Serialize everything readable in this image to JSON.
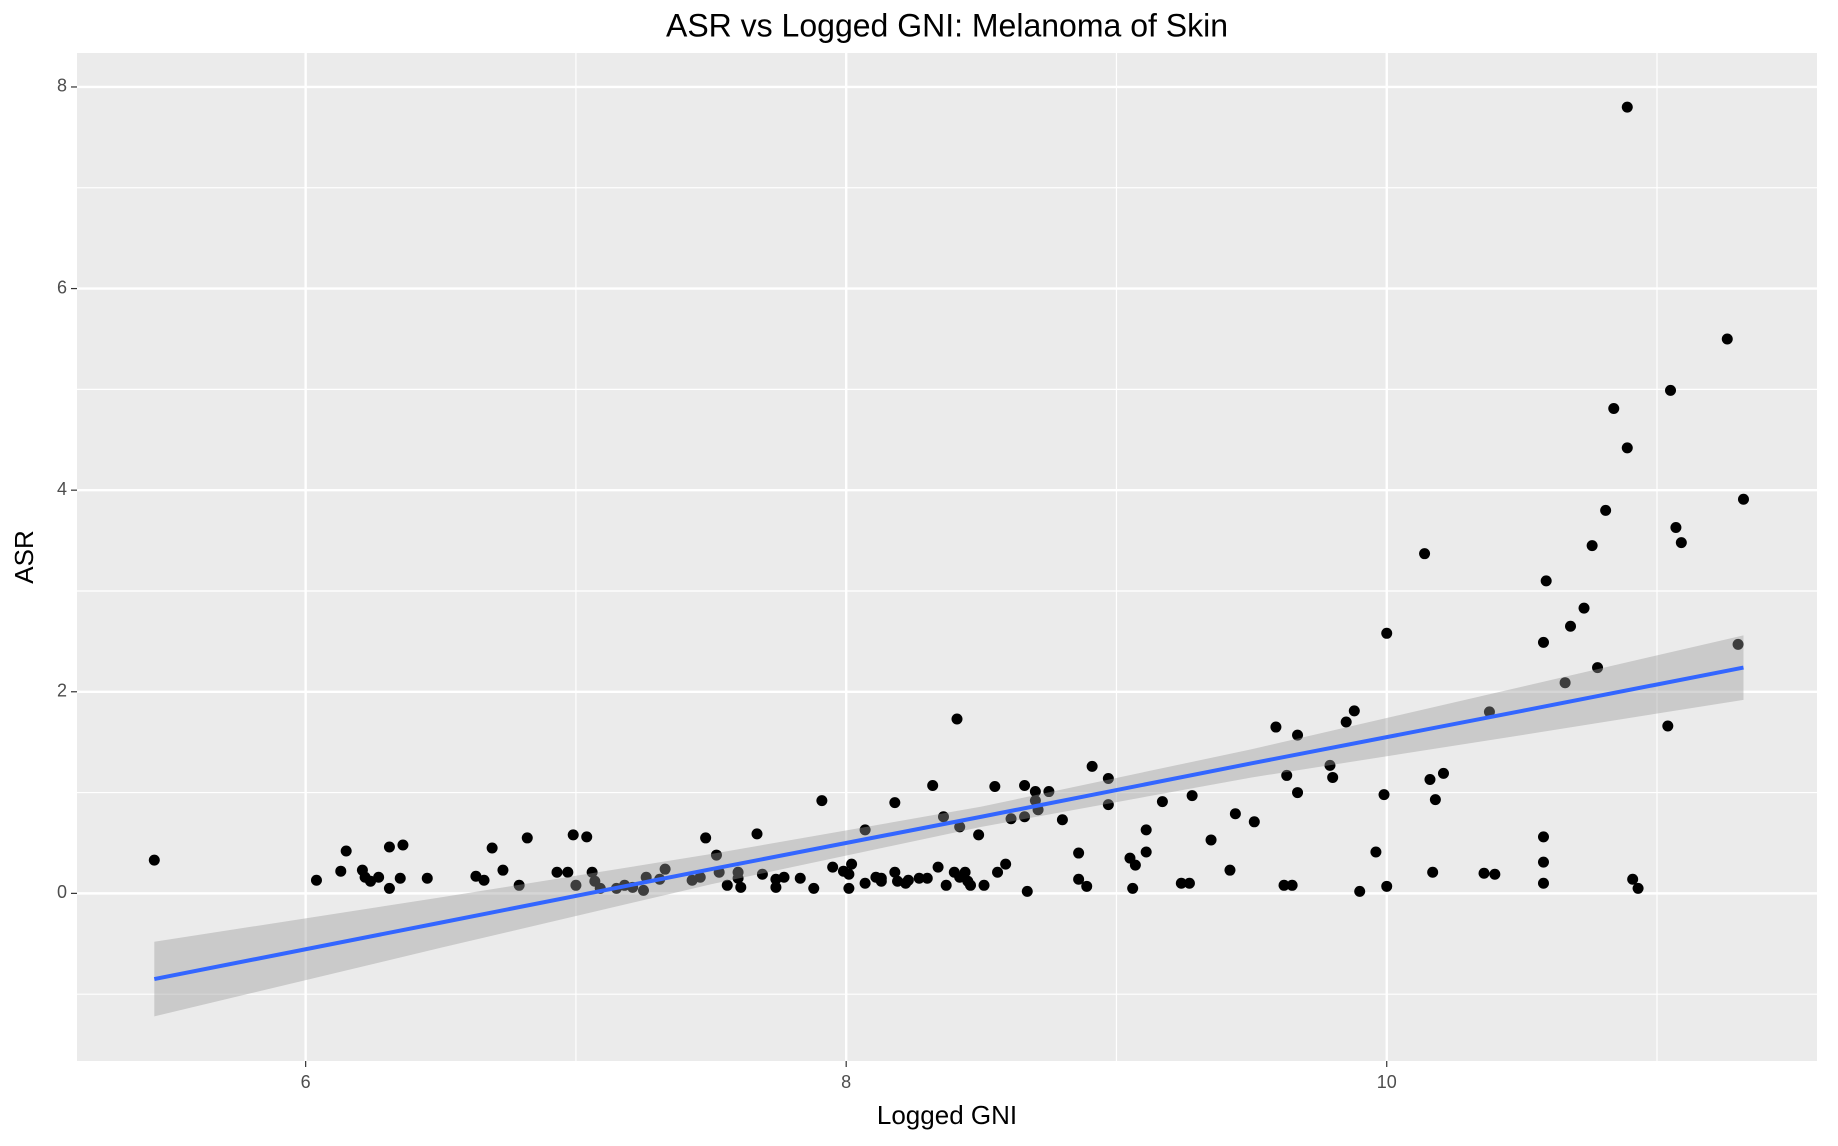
{
  "chart_data": {
    "type": "scatter",
    "title": "ASR vs Logged GNI: Melanoma of Skin",
    "x_label": "Logged GNI",
    "y_label": "ASR",
    "xlim": [
      5.154,
      11.592
    ],
    "ylim": [
      -1.663,
      8.337
    ],
    "xticks": [
      6,
      8,
      10
    ],
    "yticks": [
      0,
      2,
      4,
      6,
      8
    ],
    "x_minor_grid": [
      7,
      9,
      11
    ],
    "y_minor_grid": [
      -1,
      1,
      3,
      5,
      7
    ],
    "grid": true,
    "panel_color": "#ebebeb",
    "point_color": "#000000",
    "x": [
      5.44,
      6.04,
      6.13,
      6.15,
      6.21,
      6.22,
      6.24,
      6.27,
      6.31,
      6.31,
      6.35,
      6.36,
      6.45,
      6.63,
      6.66,
      6.69,
      6.73,
      6.79,
      6.82,
      6.93,
      6.97,
      6.99,
      7.0,
      7.04,
      7.06,
      7.07,
      7.09,
      7.15,
      7.18,
      7.21,
      7.25,
      7.26,
      7.31,
      7.33,
      7.43,
      7.46,
      7.48,
      7.52,
      7.53,
      7.56,
      7.6,
      7.6,
      7.61,
      7.67,
      7.69,
      7.74,
      7.74,
      7.77,
      7.83,
      7.88,
      7.91,
      7.95,
      7.99,
      8.01,
      8.01,
      8.02,
      8.07,
      8.07,
      8.11,
      8.13,
      8.13,
      8.18,
      8.18,
      8.19,
      8.22,
      8.23,
      8.27,
      8.3,
      8.32,
      8.34,
      8.36,
      8.37,
      8.4,
      8.41,
      8.42,
      8.42,
      8.44,
      8.45,
      8.46,
      8.49,
      8.51,
      8.55,
      8.56,
      8.59,
      8.61,
      8.66,
      8.66,
      8.67,
      8.7,
      8.7,
      8.71,
      8.75,
      8.8,
      8.86,
      8.86,
      8.89,
      8.91,
      8.97,
      8.97,
      9.05,
      9.06,
      9.07,
      9.11,
      9.11,
      9.17,
      9.24,
      9.27,
      9.28,
      9.35,
      9.42,
      9.44,
      9.51,
      9.59,
      9.62,
      9.63,
      9.65,
      9.67,
      9.67,
      9.79,
      9.8,
      9.85,
      9.88,
      9.9,
      9.96,
      9.99,
      10.0,
      10.0,
      10.14,
      10.16,
      10.17,
      10.18,
      10.21,
      10.36,
      10.38,
      10.4,
      10.58,
      10.58,
      10.58,
      10.58,
      10.59,
      10.66,
      10.68,
      10.73,
      10.76,
      10.78,
      10.81,
      10.84,
      10.89,
      10.89,
      10.91,
      10.93,
      11.04,
      11.05,
      11.07,
      11.09,
      11.26,
      11.3,
      11.32
    ],
    "values": [
      0.33,
      0.13,
      0.22,
      0.42,
      0.23,
      0.16,
      0.12,
      0.16,
      0.46,
      0.05,
      0.15,
      0.48,
      0.15,
      0.17,
      0.13,
      0.45,
      0.23,
      0.08,
      0.55,
      0.21,
      0.21,
      0.58,
      0.08,
      0.56,
      0.21,
      0.12,
      0.05,
      0.05,
      0.08,
      0.06,
      0.03,
      0.16,
      0.14,
      0.24,
      0.13,
      0.16,
      0.55,
      0.38,
      0.21,
      0.08,
      0.21,
      0.15,
      0.06,
      0.59,
      0.19,
      0.14,
      0.06,
      0.16,
      0.15,
      0.05,
      0.92,
      0.26,
      0.22,
      0.19,
      0.05,
      0.29,
      0.63,
      0.1,
      0.16,
      0.12,
      0.15,
      0.9,
      0.21,
      0.12,
      0.1,
      0.13,
      0.15,
      0.15,
      1.07,
      0.26,
      0.76,
      0.08,
      0.21,
      1.73,
      0.16,
      0.66,
      0.21,
      0.12,
      0.08,
      0.58,
      0.08,
      1.06,
      0.21,
      0.29,
      0.74,
      1.07,
      0.76,
      0.02,
      1.01,
      0.92,
      0.83,
      1.01,
      0.73,
      0.4,
      0.14,
      0.07,
      1.26,
      0.88,
      1.14,
      0.35,
      0.05,
      0.28,
      0.63,
      0.41,
      0.91,
      0.1,
      0.1,
      0.97,
      0.53,
      0.23,
      0.79,
      0.71,
      1.65,
      0.08,
      1.17,
      0.08,
      1.0,
      1.57,
      1.27,
      1.15,
      1.7,
      1.81,
      0.02,
      0.41,
      0.98,
      0.07,
      2.58,
      3.37,
      1.13,
      0.21,
      0.93,
      1.19,
      0.2,
      1.8,
      0.19,
      2.49,
      0.31,
      0.56,
      0.1,
      3.1,
      2.09,
      2.65,
      2.83,
      3.45,
      2.24,
      3.8,
      4.81,
      7.8,
      4.42,
      0.14,
      0.05,
      1.66,
      4.99,
      3.63,
      3.48,
      5.5,
      2.47,
      3.91
    ],
    "trend": {
      "color": "#3366ff",
      "band_color": "#999999",
      "x": [
        5.44,
        6.5,
        7.5,
        8.5,
        9.5,
        10.5,
        11.32
      ],
      "values": [
        -0.85,
        -0.29,
        0.24,
        0.76,
        1.29,
        1.81,
        2.24
      ],
      "lower": [
        -1.22,
        -0.54,
        0.09,
        0.66,
        1.15,
        1.57,
        1.92
      ],
      "upper": [
        -0.48,
        -0.04,
        0.39,
        0.86,
        1.43,
        2.05,
        2.56
      ]
    }
  }
}
